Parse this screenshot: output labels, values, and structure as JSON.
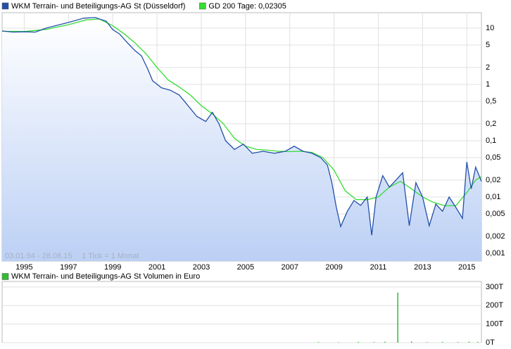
{
  "chart_data": [
    {
      "type": "line",
      "log_scale": true,
      "grid": true,
      "legend": "top-left",
      "annotations": [
        "03.01.94 - 28.08.15",
        "1 Tick = 1 Monat"
      ],
      "xlim": [
        1994.0,
        2015.66
      ],
      "xticks": [
        1995,
        1997,
        1999,
        2001,
        2003,
        2005,
        2007,
        2009,
        2011,
        2013,
        2015
      ],
      "ylim": [
        0.00073,
        18.8
      ],
      "yticks": [
        10,
        5,
        2,
        1,
        {
          "value": 0.5,
          "label": "0,5"
        },
        {
          "value": 0.2,
          "label": "0,2"
        },
        {
          "value": 0.1,
          "label": "0,1"
        },
        {
          "value": 0.05,
          "label": "0,05"
        },
        {
          "value": 0.02,
          "label": "0,02"
        },
        {
          "value": 0.01,
          "label": "0,01"
        },
        {
          "value": 0.005,
          "label": "0,005"
        },
        {
          "value": 0.002,
          "label": "0,002"
        },
        {
          "value": 0.001,
          "label": "0,001"
        }
      ],
      "series": [
        {
          "name": "WKM Terrain- und Beteiligungs-AG St (Düsseldorf)",
          "color": "#2350a8",
          "x": [
            1994.0,
            1994.5,
            1995.0,
            1995.5,
            1996.0,
            1997.0,
            1997.7,
            1998.2,
            1998.7,
            1999.0,
            1999.3,
            1999.7,
            2000.0,
            2000.3,
            2000.6,
            2000.8,
            2001.2,
            2001.6,
            2002.0,
            2002.4,
            2002.8,
            2003.2,
            2003.5,
            2003.8,
            2004.1,
            2004.5,
            2004.9,
            2005.3,
            2005.8,
            2006.3,
            2006.8,
            2007.2,
            2007.6,
            2008.0,
            2008.4,
            2008.7,
            2008.9,
            2009.1,
            2009.3,
            2009.6,
            2009.9,
            2010.2,
            2010.5,
            2010.7,
            2010.9,
            2011.2,
            2011.5,
            2011.8,
            2012.1,
            2012.4,
            2012.7,
            2013.0,
            2013.3,
            2013.6,
            2013.9,
            2014.2,
            2014.5,
            2014.8,
            2015.0,
            2015.2,
            2015.4,
            2015.66
          ],
          "values": [
            8.9,
            8.5,
            8.6,
            8.5,
            10,
            12.6,
            15,
            15.4,
            13.3,
            9.4,
            7.9,
            5.3,
            4.0,
            3.2,
            1.8,
            1.16,
            0.87,
            0.79,
            0.65,
            0.42,
            0.27,
            0.22,
            0.32,
            0.2,
            0.1,
            0.07,
            0.087,
            0.06,
            0.065,
            0.06,
            0.065,
            0.08,
            0.065,
            0.06,
            0.05,
            0.037,
            0.018,
            0.0066,
            0.003,
            0.0056,
            0.0087,
            0.0071,
            0.01,
            0.0021,
            0.01,
            0.024,
            0.015,
            0.02,
            0.027,
            0.0031,
            0.018,
            0.01,
            0.0031,
            0.0075,
            0.0056,
            0.01,
            0.0066,
            0.0042,
            0.042,
            0.014,
            0.034,
            0.019
          ]
        },
        {
          "name": "GD 200 Tage: 0,02305",
          "color": "#33dd33",
          "x": [
            1994.0,
            1995.0,
            1996.0,
            1997.0,
            1997.8,
            1998.4,
            1999.0,
            1999.5,
            2000.0,
            2000.5,
            2001.0,
            2001.5,
            2002.0,
            2002.5,
            2003.0,
            2003.5,
            2004.0,
            2004.5,
            2005.0,
            2005.5,
            2006.0,
            2006.5,
            2007.0,
            2007.5,
            2008.0,
            2008.5,
            2009.0,
            2009.5,
            2010.0,
            2010.5,
            2011.0,
            2011.5,
            2012.0,
            2012.5,
            2013.0,
            2013.5,
            2014.0,
            2014.5,
            2015.0,
            2015.4,
            2015.66
          ],
          "values": [
            8.8,
            8.7,
            9.5,
            11.5,
            14,
            14.5,
            11,
            8,
            5.5,
            3.5,
            2.0,
            1.2,
            0.9,
            0.65,
            0.42,
            0.3,
            0.2,
            0.11,
            0.08,
            0.07,
            0.068,
            0.065,
            0.064,
            0.065,
            0.062,
            0.05,
            0.03,
            0.013,
            0.009,
            0.009,
            0.01,
            0.015,
            0.019,
            0.014,
            0.01,
            0.008,
            0.007,
            0.007,
            0.012,
            0.02,
            0.023
          ]
        }
      ]
    },
    {
      "type": "bar",
      "xlim": [
        1994.0,
        2015.66
      ],
      "ylim": [
        0,
        330000
      ],
      "yticks": [
        {
          "value": 300000,
          "label": "300T"
        },
        {
          "value": 200000,
          "label": "200T"
        },
        {
          "value": 100000,
          "label": "100T"
        },
        {
          "value": 0,
          "label": "0T"
        }
      ],
      "series": [
        {
          "name": "WKM Terrain- und Beteiligungs-AG St Volumen in Euro",
          "color": "#33bb33",
          "x": [
            2008.3,
            2009.2,
            2010.1,
            2010.8,
            2011.3,
            2011.88,
            2012.5,
            2013.2,
            2013.9,
            2014.6,
            2015.1,
            2015.5
          ],
          "values": [
            3000,
            2500,
            4000,
            3000,
            5000,
            270000,
            6000,
            3000,
            4000,
            3500,
            5000,
            4000
          ]
        }
      ]
    }
  ]
}
